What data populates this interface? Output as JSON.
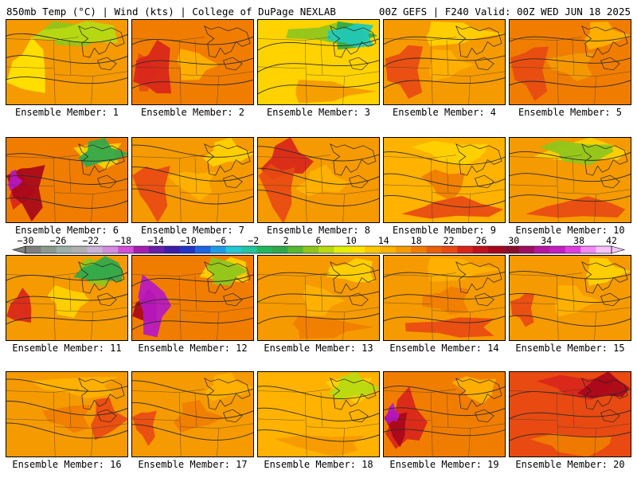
{
  "header": {
    "left": "850mb Temp (°C) | Wind (kts) | College of DuPage NEXLAB",
    "right": "00Z GEFS | F240 Valid: 00Z WED JUN 18 2025"
  },
  "panels": [
    {
      "label": "Ensemble Member: 1",
      "base": "#f59a00",
      "blobs": [
        {
          "c": "#ffe400",
          "k": "w"
        },
        {
          "c": "#8ec51c",
          "k": "n"
        },
        {
          "c": "#b7da12",
          "k": "n"
        }
      ]
    },
    {
      "label": "Ensemble Member: 2",
      "base": "#f07d00",
      "blobs": [
        {
          "c": "#e84a12",
          "k": "w"
        },
        {
          "c": "#d8251b",
          "k": "w"
        },
        {
          "c": "#ffb200",
          "k": "c"
        }
      ]
    },
    {
      "label": "Ensemble Member: 3",
      "base": "#ffd200",
      "blobs": [
        {
          "c": "#8ec51c",
          "k": "n"
        },
        {
          "c": "#2ea84d",
          "k": "ne"
        },
        {
          "c": "#22c9b8",
          "k": "ne"
        },
        {
          "c": "#f59a00",
          "k": "s"
        }
      ]
    },
    {
      "label": "Ensemble Member: 4",
      "base": "#f59a00",
      "blobs": [
        {
          "c": "#ffd200",
          "k": "n"
        },
        {
          "c": "#e84a12",
          "k": "w"
        },
        {
          "c": "#ffb200",
          "k": "c"
        }
      ]
    },
    {
      "label": "Ensemble Member: 5",
      "base": "#f07d00",
      "blobs": [
        {
          "c": "#e84a12",
          "k": "w"
        },
        {
          "c": "#ffb200",
          "k": "ne"
        },
        {
          "c": "#f59a00",
          "k": "c"
        }
      ]
    },
    {
      "label": "Ensemble Member: 6",
      "base": "#f07d00",
      "blobs": [
        {
          "c": "#d8251b",
          "k": "w"
        },
        {
          "c": "#a8071a",
          "k": "w"
        },
        {
          "c": "#b617c4",
          "k": "sw"
        },
        {
          "c": "#ffd200",
          "k": "ne"
        },
        {
          "c": "#2ea84d",
          "k": "ne"
        }
      ]
    },
    {
      "label": "Ensemble Member: 7",
      "base": "#f59a00",
      "blobs": [
        {
          "c": "#e84a12",
          "k": "w"
        },
        {
          "c": "#ffd200",
          "k": "ne"
        },
        {
          "c": "#ffb200",
          "k": "c"
        }
      ]
    },
    {
      "label": "Ensemble Member: 8",
      "base": "#f59a00",
      "blobs": [
        {
          "c": "#d8251b",
          "k": "nw"
        },
        {
          "c": "#e84a12",
          "k": "w"
        },
        {
          "c": "#ffb200",
          "k": "c"
        }
      ]
    },
    {
      "label": "Ensemble Member: 9",
      "base": "#ffb200",
      "blobs": [
        {
          "c": "#f07d00",
          "k": "c"
        },
        {
          "c": "#e84a12",
          "k": "s"
        },
        {
          "c": "#ffd200",
          "k": "n"
        }
      ]
    },
    {
      "label": "Ensemble Member: 10",
      "base": "#f59a00",
      "blobs": [
        {
          "c": "#ffd200",
          "k": "n"
        },
        {
          "c": "#8ec51c",
          "k": "n"
        },
        {
          "c": "#e84a12",
          "k": "s"
        }
      ]
    },
    {
      "label": "Ensemble Member: 11",
      "base": "#f59a00",
      "blobs": [
        {
          "c": "#8ec51c",
          "k": "ne"
        },
        {
          "c": "#2ea84d",
          "k": "ne"
        },
        {
          "c": "#ffd200",
          "k": "c"
        },
        {
          "c": "#d8251b",
          "k": "w"
        }
      ]
    },
    {
      "label": "Ensemble Member: 12",
      "base": "#f07d00",
      "blobs": [
        {
          "c": "#a8071a",
          "k": "w"
        },
        {
          "c": "#b617c4",
          "k": "w"
        },
        {
          "c": "#ffd200",
          "k": "ne"
        },
        {
          "c": "#8ec51c",
          "k": "ne"
        }
      ]
    },
    {
      "label": "Ensemble Member: 13",
      "base": "#f59a00",
      "blobs": [
        {
          "c": "#ffb200",
          "k": "c"
        },
        {
          "c": "#ffd200",
          "k": "ne"
        },
        {
          "c": "#f07d00",
          "k": "s"
        }
      ]
    },
    {
      "label": "Ensemble Member: 14",
      "base": "#f59a00",
      "blobs": [
        {
          "c": "#f07d00",
          "k": "c"
        },
        {
          "c": "#ffb200",
          "k": "n"
        },
        {
          "c": "#e84a12",
          "k": "s"
        }
      ]
    },
    {
      "label": "Ensemble Member: 15",
      "base": "#f59a00",
      "blobs": [
        {
          "c": "#ffd200",
          "k": "ne"
        },
        {
          "c": "#e84a12",
          "k": "w"
        },
        {
          "c": "#ffb200",
          "k": "c"
        }
      ]
    },
    {
      "label": "Ensemble Member: 16",
      "base": "#f59a00",
      "blobs": [
        {
          "c": "#f07d00",
          "k": "c"
        },
        {
          "c": "#e84a12",
          "k": "e"
        },
        {
          "c": "#ffb200",
          "k": "n"
        }
      ]
    },
    {
      "label": "Ensemble Member: 17",
      "base": "#f59a00",
      "blobs": [
        {
          "c": "#f07d00",
          "k": "c"
        },
        {
          "c": "#e84a12",
          "k": "w"
        },
        {
          "c": "#ffb200",
          "k": "ne"
        }
      ]
    },
    {
      "label": "Ensemble Member: 18",
      "base": "#ffb200",
      "blobs": [
        {
          "c": "#ffd200",
          "k": "ne"
        },
        {
          "c": "#b7da12",
          "k": "ne"
        },
        {
          "c": "#f59a00",
          "k": "s"
        }
      ]
    },
    {
      "label": "Ensemble Member: 19",
      "base": "#f07d00",
      "blobs": [
        {
          "c": "#d8251b",
          "k": "w"
        },
        {
          "c": "#a8071a",
          "k": "w"
        },
        {
          "c": "#b617c4",
          "k": "sw"
        },
        {
          "c": "#ffb200",
          "k": "ne"
        }
      ]
    },
    {
      "label": "Ensemble Member: 20",
      "base": "#e84a12",
      "blobs": [
        {
          "c": "#d8251b",
          "k": "n"
        },
        {
          "c": "#a8071a",
          "k": "ne"
        },
        {
          "c": "#f07d00",
          "k": "s"
        }
      ]
    }
  ],
  "colorbar": {
    "unit": "°C",
    "labels": [
      "−30",
      "−26",
      "−22",
      "−18",
      "−14",
      "−10",
      "−6",
      "−2",
      "2",
      "6",
      "10",
      "14",
      "18",
      "22",
      "26",
      "30",
      "34",
      "38",
      "42"
    ],
    "colors": [
      "#7f7f7f",
      "#8a9a8f",
      "#9cb0a8",
      "#b0b0b0",
      "#c9b3d6",
      "#d58be0",
      "#d24fd8",
      "#a51eb0",
      "#6a1fa8",
      "#3f1dab",
      "#2334c9",
      "#1e64e0",
      "#1e9be8",
      "#22c9d4",
      "#21c5a0",
      "#20b85e",
      "#2ea84d",
      "#54b831",
      "#8ec51c",
      "#b7da12",
      "#e3ee0b",
      "#ffe400",
      "#ffc800",
      "#ffb200",
      "#f59a00",
      "#f07d00",
      "#ea5f0a",
      "#e84a12",
      "#d8251b",
      "#c1121c",
      "#a8071a",
      "#8a0f2c",
      "#9e1060",
      "#b617a0",
      "#c51fc4",
      "#e03ee2",
      "#f38af4",
      "#f8c4f8"
    ]
  }
}
